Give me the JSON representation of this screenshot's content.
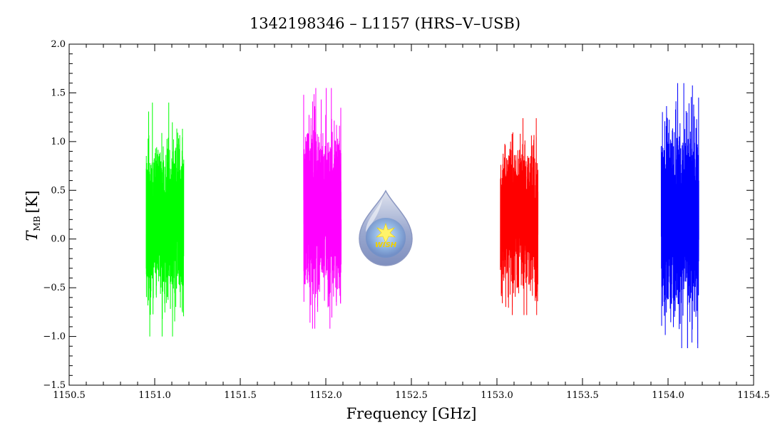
{
  "chart_data": {
    "type": "line",
    "title": "1342198346 – L1157 (HRS–V–USB)",
    "xlabel": "Frequency [GHz]",
    "ylabel_main": "T",
    "ylabel_sub": "MB",
    "ylabel_unit": "[K]",
    "xlim": [
      1150.5,
      1154.5
    ],
    "ylim": [
      -1.5,
      2.0
    ],
    "xticks": [
      1150.5,
      1151.0,
      1151.5,
      1152.0,
      1152.5,
      1153.0,
      1153.5,
      1154.0,
      1154.5
    ],
    "xtick_labels": [
      "1150.5",
      "1151.0",
      "1151.5",
      "1152.0",
      "1152.5",
      "1153.0",
      "1153.5",
      "1154.0",
      "1154.5"
    ],
    "yticks": [
      -1.5,
      -1.0,
      -0.5,
      0.0,
      0.5,
      1.0,
      1.5,
      2.0
    ],
    "ytick_labels": [
      "−1.5",
      "−1.0",
      "−0.5",
      "0.0",
      "0.5",
      "1.0",
      "1.5",
      "2.0"
    ],
    "grid": false,
    "series": [
      {
        "color": "#00ff00",
        "x_range": [
          1150.95,
          1151.17
        ],
        "mean": 0.2,
        "min": -1.0,
        "max": 1.4
      },
      {
        "color": "#ff00ff",
        "x_range": [
          1151.87,
          1152.09
        ],
        "mean": 0.3,
        "min": -0.92,
        "max": 1.55
      },
      {
        "color": "#ff0000",
        "x_range": [
          1153.02,
          1153.24
        ],
        "mean": 0.2,
        "min": -0.78,
        "max": 1.24
      },
      {
        "color": "#0000ff",
        "x_range": [
          1153.96,
          1154.18
        ],
        "mean": 0.2,
        "min": -1.12,
        "max": 1.6
      }
    ],
    "logo": {
      "text": "WISH",
      "x": 1152.35,
      "y": 0.1
    }
  }
}
